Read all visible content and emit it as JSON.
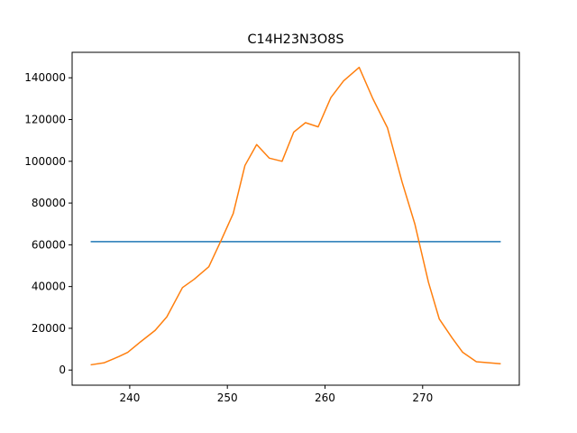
{
  "chart_data": {
    "type": "line",
    "title": "C14H23N3O8S",
    "xlabel": "",
    "ylabel": "",
    "xlim": [
      234.1,
      279.9
    ],
    "ylim": [
      -7250,
      152200
    ],
    "xticks": [
      240,
      250,
      260,
      270
    ],
    "yticks": [
      0,
      20000,
      40000,
      60000,
      80000,
      100000,
      120000,
      140000
    ],
    "grid": false,
    "legend": "none",
    "series": [
      {
        "color": "#1f77b4",
        "x": [
          236.0,
          278.0
        ],
        "y": [
          61500,
          61500
        ]
      },
      {
        "color": "#ff7f0e",
        "x": [
          236.0,
          237.4,
          238.9,
          239.8,
          241.1,
          242.6,
          243.8,
          245.4,
          246.6,
          248.1,
          249.4,
          250.6,
          251.8,
          253.0,
          254.3,
          255.6,
          256.8,
          258.0,
          259.3,
          260.6,
          261.9,
          263.5,
          264.9,
          266.4,
          267.9,
          269.2,
          270.6,
          271.7,
          273.0,
          274.1,
          275.5,
          278.0
        ],
        "y": [
          2500,
          3500,
          6500,
          8500,
          13500,
          19000,
          25500,
          39500,
          43500,
          49500,
          62500,
          75000,
          98000,
          108000,
          101500,
          100000,
          114000,
          118500,
          116500,
          130500,
          138500,
          145000,
          130000,
          116000,
          90000,
          70000,
          42000,
          24500,
          15500,
          8500,
          4000,
          3000
        ]
      }
    ]
  }
}
